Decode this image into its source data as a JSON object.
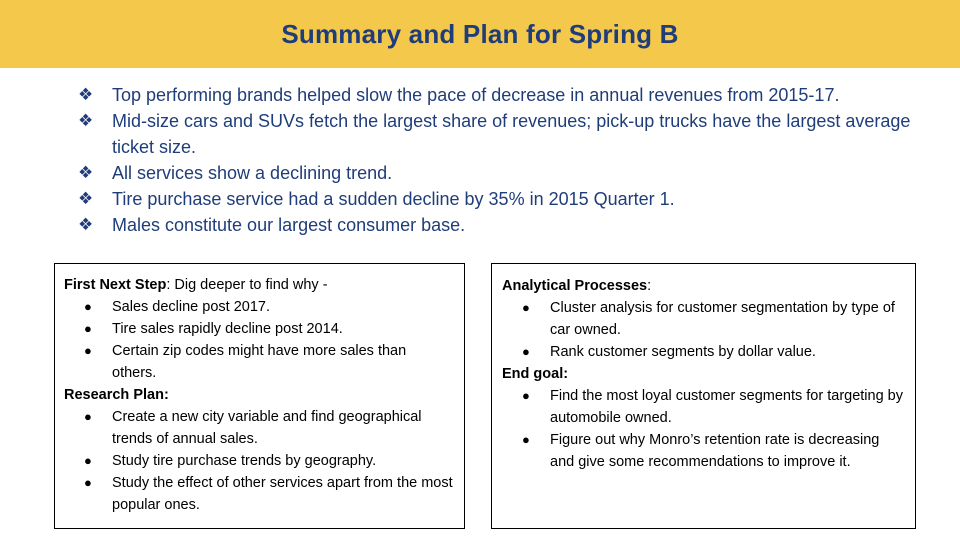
{
  "title": "Summary and Plan for Spring B",
  "summary_bullets": [
    "Top performing brands helped slow the pace of decrease in annual revenues from 2015-17.",
    "Mid-size cars and SUVs fetch the largest share of revenues; pick-up trucks have the largest average ticket size.",
    "All services show a declining trend.",
    "Tire purchase service had a sudden decline by 35% in 2015 Quarter 1.",
    "Males constitute our largest consumer base."
  ],
  "left_box": {
    "first_step_heading": "First Next Step",
    "first_step_text": ": Dig deeper to find why -",
    "first_step_items": [
      "Sales decline post 2017.",
      "Tire sales rapidly decline post 2014.",
      "Certain zip codes might have more sales than others."
    ],
    "research_heading": "Research Plan:",
    "research_items": [
      "Create a new city variable and find geographical trends of annual sales.",
      "Study tire purchase trends by geography.",
      "Study the effect of other services apart from the most popular ones."
    ]
  },
  "right_box": {
    "processes_heading": "Analytical Processes",
    "processes_colon": ":",
    "processes_items": [
      "Cluster analysis for customer segmentation by type of car owned.",
      "Rank customer segments by dollar value."
    ],
    "goal_heading": "End goal:",
    "goal_items": [
      "Find the most loyal customer segments for targeting by automobile owned.",
      "Figure out why Monro’s retention rate is decreasing and give some recommendations to improve it."
    ]
  },
  "colors": {
    "title_bar": "#f4c84a",
    "title_text": "#1f3d7a",
    "bullet_text": "#1f3d7a"
  },
  "icons": {
    "summary_bullet": "diamond-bullet-icon",
    "box_bullet": "dot-bullet-icon"
  }
}
